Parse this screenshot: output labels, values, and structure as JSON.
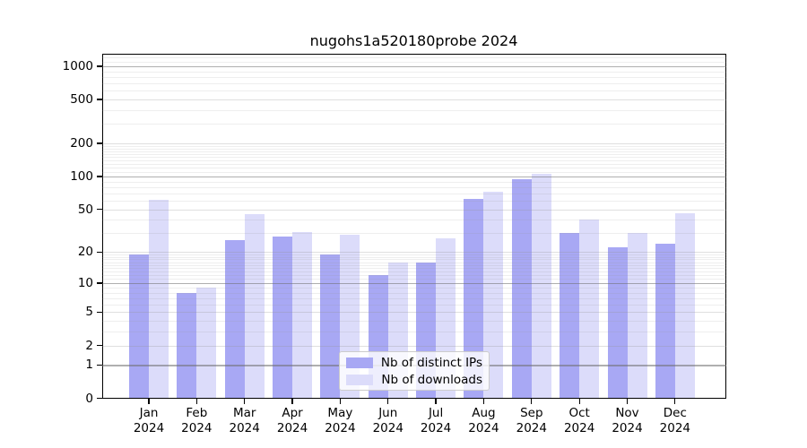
{
  "title": "nugohs1a520180probe 2024",
  "chart_data": {
    "type": "bar",
    "title": "nugohs1a520180probe 2024",
    "categories": [
      "Jan",
      "Feb",
      "Mar",
      "Apr",
      "May",
      "Jun",
      "Jul",
      "Aug",
      "Sep",
      "Oct",
      "Nov",
      "Dec"
    ],
    "year_label": "2024",
    "series": [
      {
        "name": "Nb of distinct IPs",
        "color": "#a8a8f4",
        "values": [
          19,
          8,
          26,
          28,
          19,
          12,
          16,
          62,
          95,
          30,
          22,
          24
        ]
      },
      {
        "name": "Nb of downloads",
        "color": "#dcdcfa",
        "values": [
          61,
          9,
          45,
          31,
          29,
          16,
          27,
          72,
          105,
          40,
          30,
          46
        ]
      }
    ],
    "y_ticks": [
      0,
      1,
      2,
      5,
      10,
      20,
      50,
      100,
      200,
      500,
      1000
    ],
    "yscale": "log(1+x)",
    "ylim": [
      0,
      1310
    ],
    "grid": true,
    "legend_position": "lower center"
  }
}
